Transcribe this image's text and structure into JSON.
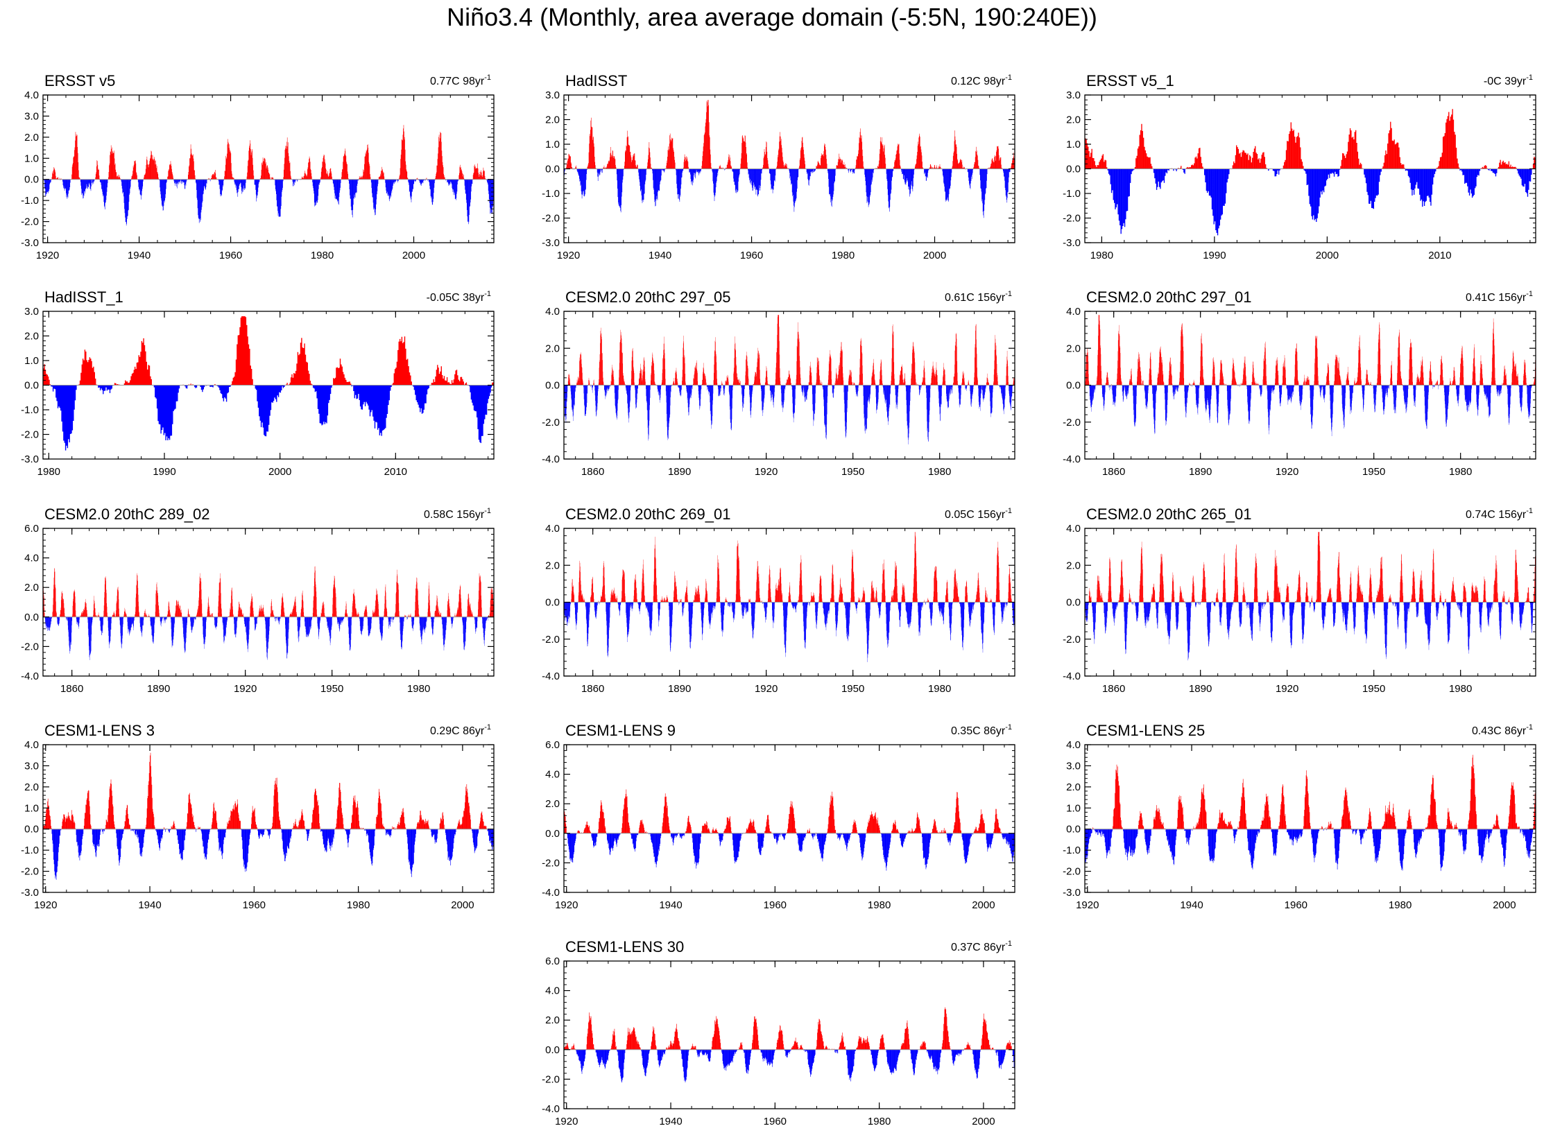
{
  "page": {
    "title": "Niño3.4 (Monthly, area average domain (-5:5N, 190:240E))"
  },
  "chart_data": [
    {
      "type": "area",
      "title": "ERSST v5",
      "trend": "0.77C 98yr",
      "trend_sup": "-1",
      "ylim": [
        -3,
        4
      ],
      "yticks": [
        "4.0",
        "3.0",
        "2.0",
        "1.0",
        "0.0",
        "-1.0",
        "-2.0",
        "-3.0"
      ],
      "xlim": [
        1919,
        2017.5
      ],
      "xticks": [
        1920,
        1940,
        1960,
        1980,
        2000
      ],
      "series_seed": 11,
      "amplitude": 1.05,
      "period_years": 4.2,
      "trend_shift": 0.0
    },
    {
      "type": "area",
      "title": "HadISST",
      "trend": "0.12C 98yr",
      "trend_sup": "-1",
      "ylim": [
        -3,
        3
      ],
      "yticks": [
        "3.0",
        "2.0",
        "1.0",
        "0.0",
        "-1.0",
        "-2.0",
        "-3.0"
      ],
      "xlim": [
        1919,
        2017.5
      ],
      "xticks": [
        1920,
        1940,
        1960,
        1980,
        2000
      ],
      "series_seed": 12,
      "amplitude": 1.0,
      "period_years": 4.2,
      "trend_shift": 0.0
    },
    {
      "type": "area",
      "title": "ERSST v5_1",
      "trend": "-0C 39yr",
      "trend_sup": "-1",
      "ylim": [
        -3,
        3
      ],
      "yticks": [
        "3.0",
        "2.0",
        "1.0",
        "0.0",
        "-1.0",
        "-2.0",
        "-3.0"
      ],
      "xlim": [
        1978.5,
        2018.5
      ],
      "xticks": [
        1980,
        1990,
        2000,
        2010
      ],
      "series_seed": 13,
      "amplitude": 1.35,
      "period_years": 4.5,
      "trend_shift": 0.0
    },
    {
      "type": "area",
      "title": "HadISST_1",
      "trend": "-0.05C 38yr",
      "trend_sup": "-1",
      "ylim": [
        -3,
        3
      ],
      "yticks": [
        "3.0",
        "2.0",
        "1.0",
        "0.0",
        "-1.0",
        "-2.0",
        "-3.0"
      ],
      "xlim": [
        1979.5,
        2018.5
      ],
      "xticks": [
        1980,
        1990,
        2000,
        2010
      ],
      "series_seed": 14,
      "amplitude": 1.35,
      "period_years": 4.5,
      "trend_shift": 0.0
    },
    {
      "type": "area",
      "title": "CESM2.0 20thC 297_05",
      "trend": "0.61C 156yr",
      "trend_sup": "-1",
      "ylim": [
        -4,
        4
      ],
      "yticks": [
        "4.0",
        "2.0",
        "0.0",
        "-2.0",
        "-4.0"
      ],
      "xlim": [
        1850,
        2006
      ],
      "xticks": [
        1860,
        1890,
        1920,
        1950,
        1980
      ],
      "series_seed": 15,
      "amplitude": 1.45,
      "period_years": 3.6,
      "trend_shift": 0.0
    },
    {
      "type": "area",
      "title": "CESM2.0 20thC 297_01",
      "trend": "0.41C 156yr",
      "trend_sup": "-1",
      "ylim": [
        -4,
        4
      ],
      "yticks": [
        "4.0",
        "2.0",
        "0.0",
        "-2.0",
        "-4.0"
      ],
      "xlim": [
        1850,
        2006
      ],
      "xticks": [
        1860,
        1890,
        1920,
        1950,
        1980
      ],
      "series_seed": 16,
      "amplitude": 1.45,
      "period_years": 3.6,
      "trend_shift": 0.0
    },
    {
      "type": "area",
      "title": "CESM2.0 20thC 289_02",
      "trend": "0.58C 156yr",
      "trend_sup": "-1",
      "ylim": [
        -4,
        6
      ],
      "yticks": [
        "6.0",
        "4.0",
        "2.0",
        "0.0",
        "-2.0",
        "-4.0"
      ],
      "xlim": [
        1850,
        2006
      ],
      "xticks": [
        1860,
        1890,
        1920,
        1950,
        1980
      ],
      "series_seed": 17,
      "amplitude": 1.4,
      "period_years": 3.6,
      "trend_shift": 0.0
    },
    {
      "type": "area",
      "title": "CESM2.0 20thC 269_01",
      "trend": "0.05C 156yr",
      "trend_sup": "-1",
      "ylim": [
        -4,
        4
      ],
      "yticks": [
        "4.0",
        "2.0",
        "0.0",
        "-2.0",
        "-4.0"
      ],
      "xlim": [
        1850,
        2006
      ],
      "xticks": [
        1860,
        1890,
        1920,
        1950,
        1980
      ],
      "series_seed": 18,
      "amplitude": 1.45,
      "period_years": 3.6,
      "trend_shift": 0.0
    },
    {
      "type": "area",
      "title": "CESM2.0 20thC 265_01",
      "trend": "0.74C 156yr",
      "trend_sup": "-1",
      "ylim": [
        -4,
        4
      ],
      "yticks": [
        "4.0",
        "2.0",
        "0.0",
        "-2.0",
        "-4.0"
      ],
      "xlim": [
        1850,
        2006
      ],
      "xticks": [
        1860,
        1890,
        1920,
        1950,
        1980
      ],
      "series_seed": 19,
      "amplitude": 1.5,
      "period_years": 3.6,
      "trend_shift": 0.0
    },
    {
      "type": "area",
      "title": "CESM1-LENS 3",
      "trend": "0.29C 86yr",
      "trend_sup": "-1",
      "ylim": [
        -3,
        4
      ],
      "yticks": [
        "4.0",
        "3.0",
        "2.0",
        "1.0",
        "0.0",
        "-1.0",
        "-2.0",
        "-3.0"
      ],
      "xlim": [
        1919.5,
        2006
      ],
      "xticks": [
        1920,
        1940,
        1960,
        1980,
        2000
      ],
      "series_seed": 20,
      "amplitude": 1.15,
      "period_years": 4.0,
      "trend_shift": 0.0
    },
    {
      "type": "area",
      "title": "CESM1-LENS 9",
      "trend": "0.35C 86yr",
      "trend_sup": "-1",
      "ylim": [
        -4,
        6
      ],
      "yticks": [
        "6.0",
        "4.0",
        "2.0",
        "0.0",
        "-2.0",
        "-4.0"
      ],
      "xlim": [
        1919.5,
        2006
      ],
      "xticks": [
        1920,
        1940,
        1960,
        1980,
        2000
      ],
      "series_seed": 21,
      "amplitude": 1.3,
      "period_years": 4.0,
      "trend_shift": 0.0
    },
    {
      "type": "area",
      "title": "CESM1-LENS 25",
      "trend": "0.43C 86yr",
      "trend_sup": "-1",
      "ylim": [
        -3,
        4
      ],
      "yticks": [
        "4.0",
        "3.0",
        "2.0",
        "1.0",
        "0.0",
        "-1.0",
        "-2.0",
        "-3.0"
      ],
      "xlim": [
        1919.5,
        2006
      ],
      "xticks": [
        1920,
        1940,
        1960,
        1980,
        2000
      ],
      "series_seed": 22,
      "amplitude": 1.3,
      "period_years": 4.0,
      "trend_shift": 0.0
    },
    {
      "type": "area",
      "title": "CESM1-LENS 30",
      "trend": "0.37C 86yr",
      "trend_sup": "-1",
      "ylim": [
        -4,
        6
      ],
      "yticks": [
        "6.0",
        "4.0",
        "2.0",
        "0.0",
        "-2.0",
        "-4.0"
      ],
      "xlim": [
        1919.5,
        2006
      ],
      "xticks": [
        1920,
        1940,
        1960,
        1980,
        2000
      ],
      "series_seed": 23,
      "amplitude": 1.3,
      "period_years": 4.0,
      "trend_shift": 0.0
    }
  ],
  "colors": {
    "positive": "#ff0000",
    "negative": "#0000ff",
    "axis": "#000000",
    "zero_line": "#999999"
  }
}
